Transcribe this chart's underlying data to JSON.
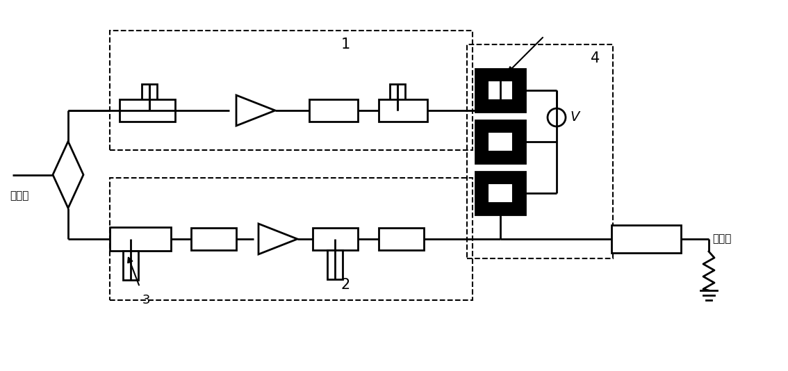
{
  "bg_color": "#ffffff",
  "line_color": "#000000",
  "figsize": [
    11.34,
    5.34
  ],
  "dpi": 100,
  "label1": "1",
  "label2": "2",
  "label3": "3",
  "label4": "4",
  "label_in": "总输入",
  "label_out": "总输出",
  "label_v": "V"
}
